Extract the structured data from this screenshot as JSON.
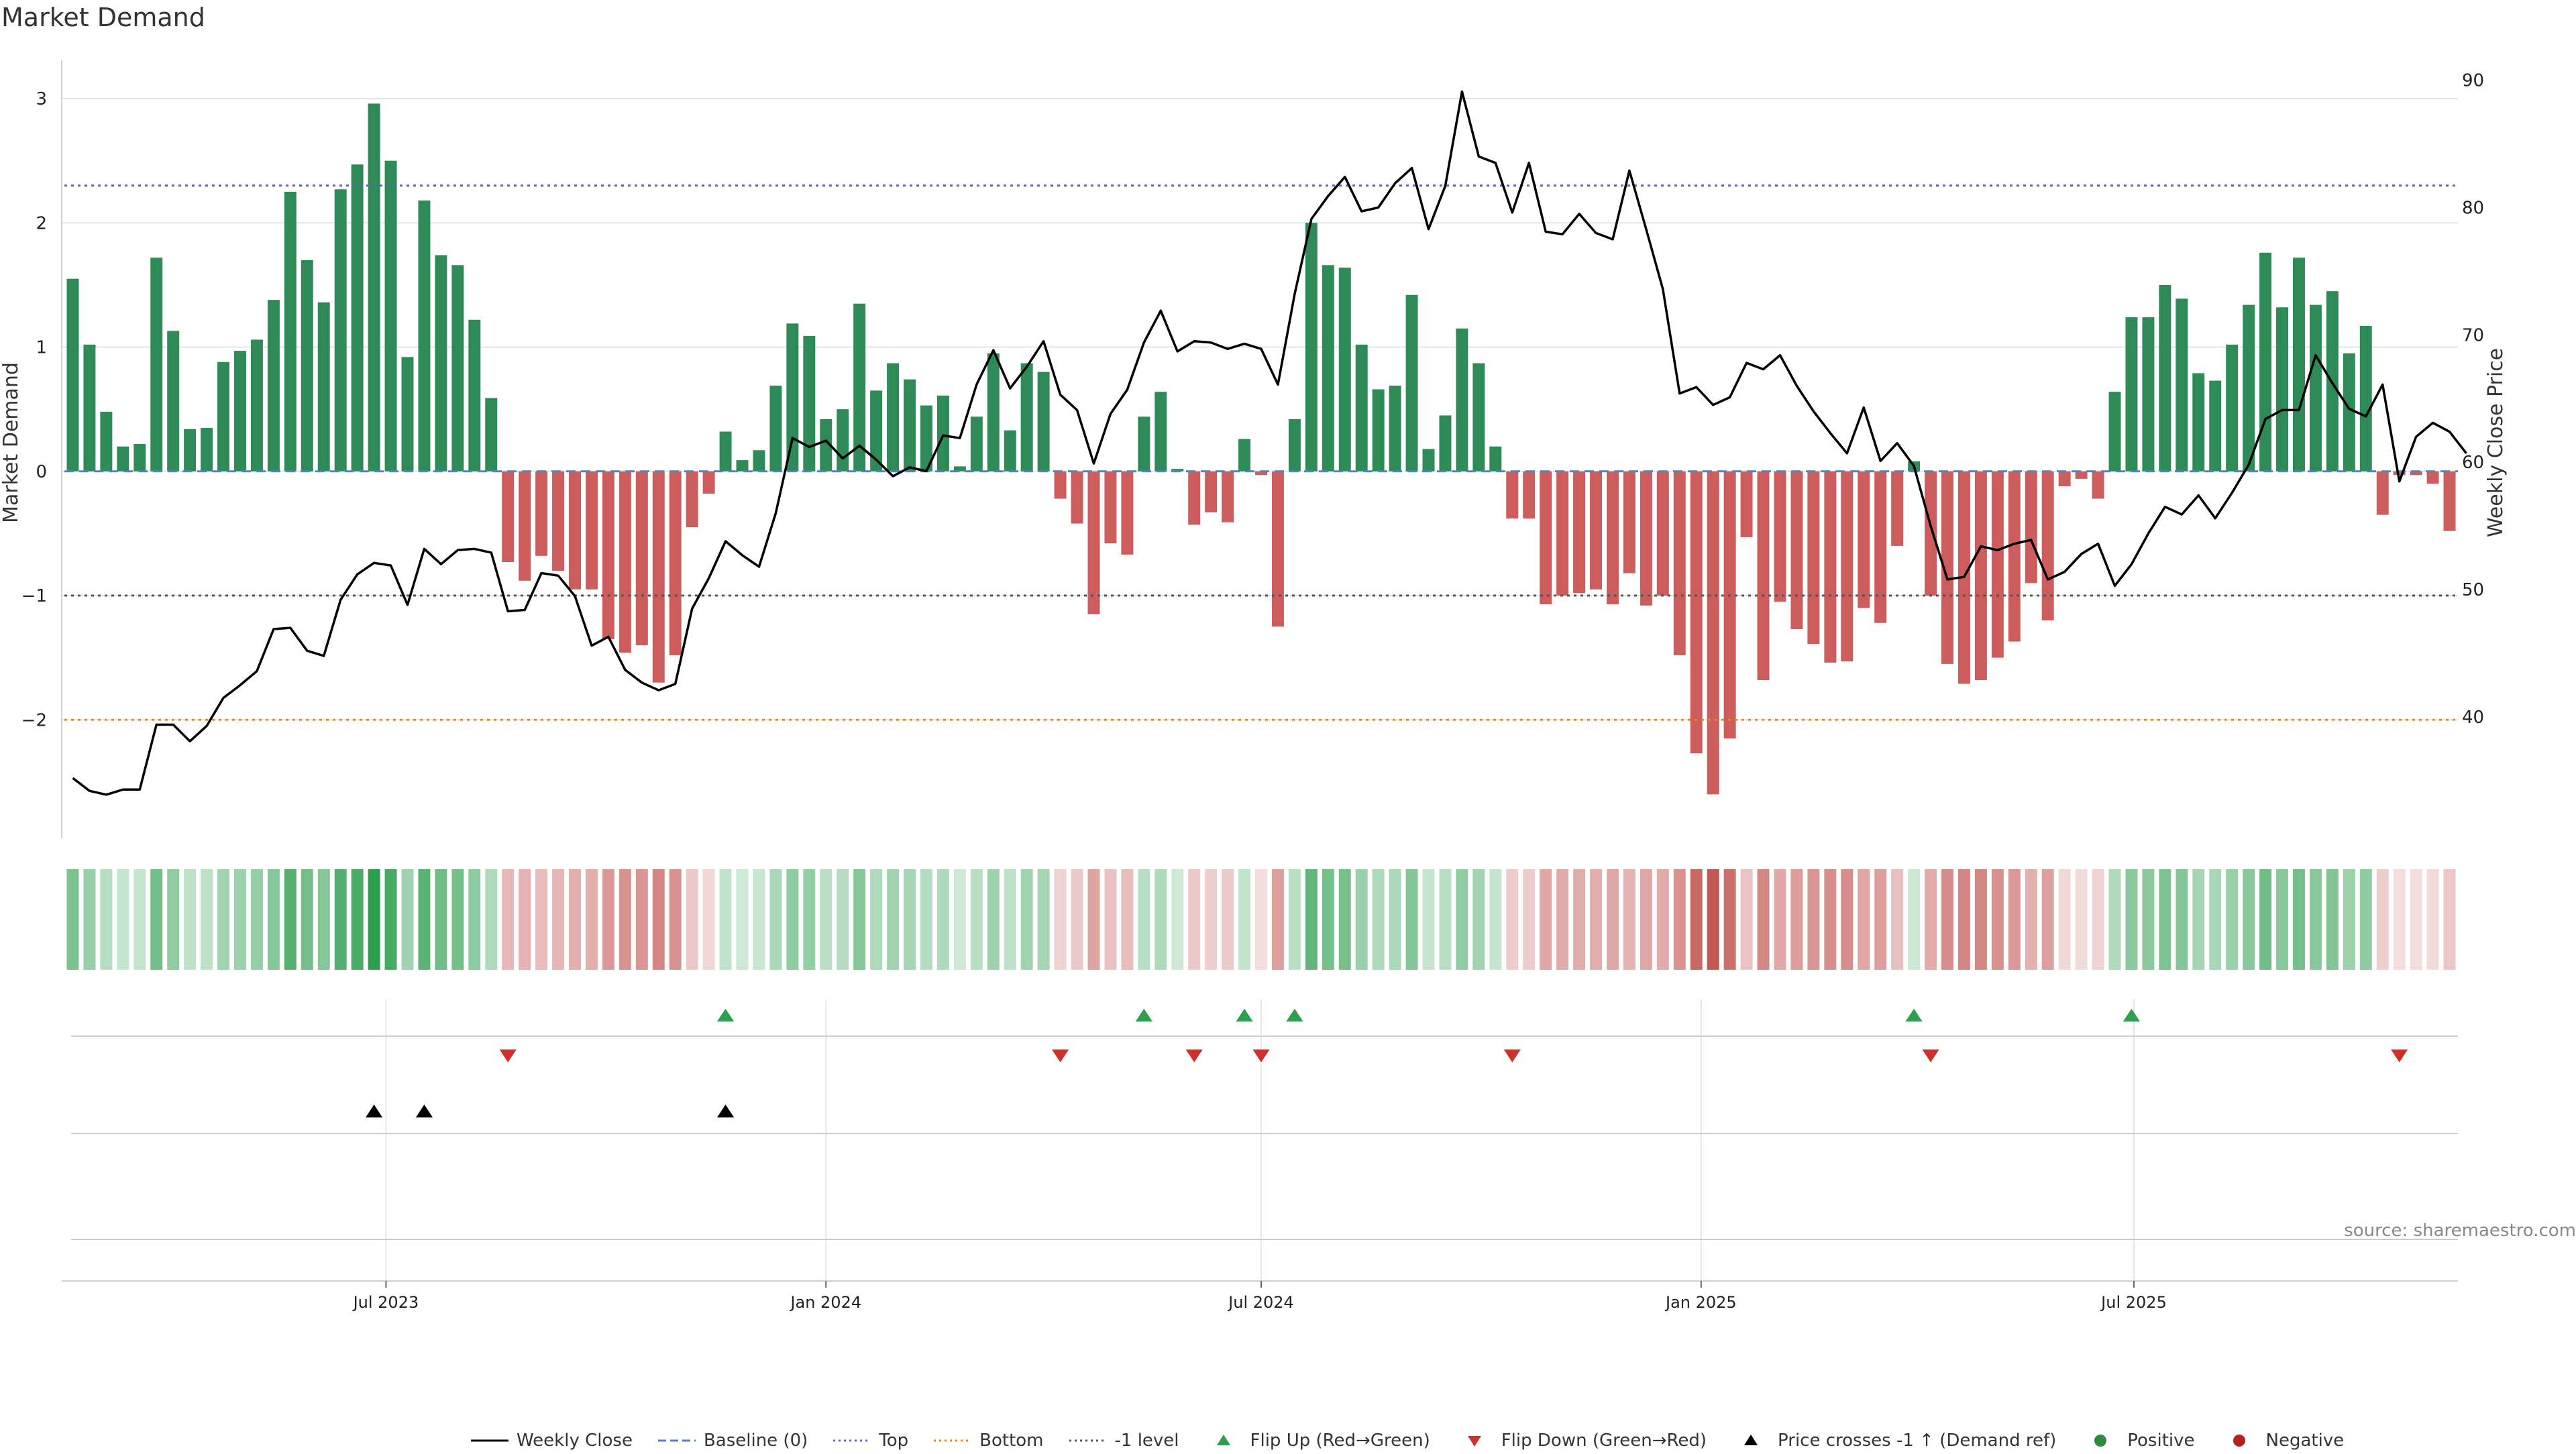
{
  "chart_title": "Market Demand",
  "source": "source: sharemaestro.com",
  "y_left_label": "Market Demand",
  "y_right_label": "Weekly Close Price",
  "legend": [
    {
      "key": "close",
      "label": "Weekly Close",
      "symbol": "line",
      "color": "#000000"
    },
    {
      "key": "baseline",
      "label": "Baseline (0)",
      "symbol": "dashed",
      "color": "#4f86c6"
    },
    {
      "key": "top",
      "label": "Top",
      "symbol": "dotted",
      "color": "#6a5acd"
    },
    {
      "key": "bottom",
      "label": "Bottom",
      "symbol": "dotted",
      "color": "#e08a2c"
    },
    {
      "key": "minus1",
      "label": "-1 level",
      "symbol": "dotted",
      "color": "#555555"
    },
    {
      "key": "flipup",
      "label": "Flip Up (Red→Green)",
      "symbol": "tri-up",
      "color": "#2e9e4f"
    },
    {
      "key": "flipdown",
      "label": "Flip Down (Green→Red)",
      "symbol": "tri-down",
      "color": "#d0302c"
    },
    {
      "key": "cross",
      "label": "Price crosses -1 ↑ (Demand ref)",
      "symbol": "tri-up",
      "color": "#000000"
    },
    {
      "key": "pos",
      "label": "Positive",
      "symbol": "dot",
      "color": "#2e8b3e"
    },
    {
      "key": "neg",
      "label": "Negative",
      "symbol": "dot",
      "color": "#b22222"
    }
  ],
  "colors": {
    "positive_bar": "#2e8b57",
    "negative_bar": "#cd5c5c",
    "heat_pos": "#2e9e4f",
    "heat_neg": "#c0504d",
    "price_line": "#000000",
    "top_line": "#6a5acd",
    "bottom_line": "#e08a2c",
    "minus1_line": "#555555",
    "baseline": "#4f86c6",
    "flip_up": "#2e9e4f",
    "flip_down": "#d0302c",
    "cross": "#000000"
  },
  "chart_data": {
    "type": "bar",
    "first_week": "2023-02-20",
    "weeks": 144,
    "y_left": {
      "label": "Market Demand",
      "ticks": [
        -2,
        -1,
        0,
        1,
        2,
        3
      ],
      "tick_labels": [
        "−2",
        "−1",
        "0",
        "1",
        "2",
        "3"
      ],
      "range": [
        -2.9,
        3.2
      ]
    },
    "y_right": {
      "label": "Weekly Close Price",
      "ticks": [
        40,
        50,
        60,
        70,
        80,
        90
      ],
      "range": [
        31,
        90.5
      ]
    },
    "x_ticks": [
      {
        "label": "Jul 2023",
        "date": "2023-07-01"
      },
      {
        "label": "Jan 2024",
        "date": "2024-01-01"
      },
      {
        "label": "Jul 2024",
        "date": "2024-07-01"
      },
      {
        "label": "Jan 2025",
        "date": "2025-01-01"
      },
      {
        "label": "Jul 2025",
        "date": "2025-07-01"
      }
    ],
    "reference_lines": {
      "top": 2.3,
      "bottom": -2.0,
      "minus1": -1.0,
      "baseline": 0
    },
    "series": [
      {
        "name": "Market Demand",
        "values": [
          1.55,
          1.02,
          0.48,
          0.2,
          0.22,
          1.72,
          1.13,
          0.34,
          0.35,
          0.88,
          0.97,
          1.06,
          1.38,
          2.25,
          1.7,
          1.36,
          2.27,
          2.47,
          2.96,
          2.5,
          0.92,
          2.18,
          1.74,
          1.66,
          1.22,
          0.59,
          -0.73,
          -0.88,
          -0.68,
          -0.8,
          -0.95,
          -0.95,
          -1.35,
          -1.46,
          -1.4,
          -1.7,
          -1.48,
          -0.45,
          -0.18,
          0.32,
          0.09,
          0.17,
          0.69,
          1.19,
          1.09,
          0.42,
          0.5,
          1.35,
          0.65,
          0.87,
          0.74,
          0.53,
          0.61,
          0.04,
          0.44,
          0.95,
          0.33,
          0.87,
          0.8,
          -0.22,
          -0.42,
          -1.15,
          -0.58,
          -0.67,
          0.44,
          0.64,
          0.02,
          -0.43,
          -0.33,
          -0.41,
          0.26,
          -0.03,
          -1.25,
          0.42,
          2.0,
          1.66,
          1.64,
          1.02,
          0.66,
          0.69,
          1.42,
          0.18,
          0.45,
          1.15,
          0.87,
          0.2,
          -0.38,
          -0.38,
          -1.07,
          -1.0,
          -0.98,
          -0.95,
          -1.07,
          -0.82,
          -1.08,
          -1.0,
          -1.48,
          -2.27,
          -2.6,
          -2.15,
          -0.53,
          -1.68,
          -1.05,
          -1.27,
          -1.39,
          -1.54,
          -1.53,
          -1.1,
          -1.22,
          -0.6,
          0.08,
          -1.0,
          -1.55,
          -1.71,
          -1.68,
          -1.5,
          -1.37,
          -0.9,
          -1.2,
          -0.12,
          -0.06,
          -0.22,
          0.64,
          1.24,
          1.24,
          1.5,
          1.39,
          0.79,
          0.73,
          1.02,
          1.34,
          1.76,
          1.32,
          1.72,
          1.34,
          1.45,
          0.95,
          1.17,
          -0.35,
          -0.03,
          -0.03,
          -0.1,
          -0.48
        ]
      },
      {
        "name": "Weekly Close",
        "values": [
          35.2,
          34.2,
          33.9,
          34.3,
          34.3,
          39.4,
          39.4,
          38.1,
          39.3,
          41.5,
          42.5,
          43.6,
          46.9,
          47.0,
          45.2,
          44.8,
          49.2,
          51.2,
          52.1,
          51.9,
          48.8,
          53.2,
          52.0,
          53.1,
          53.2,
          52.9,
          48.3,
          48.4,
          51.3,
          51.1,
          49.5,
          45.6,
          46.3,
          43.7,
          42.7,
          42.1,
          42.6,
          48.5,
          50.9,
          53.8,
          52.7,
          51.8,
          56.0,
          61.9,
          61.2,
          61.7,
          60.3,
          61.3,
          60.2,
          58.9,
          59.6,
          59.3,
          62.1,
          61.9,
          66.1,
          68.8,
          65.8,
          67.5,
          69.5,
          65.3,
          64.1,
          59.9,
          63.8,
          65.7,
          69.4,
          71.9,
          68.7,
          69.5,
          69.4,
          68.9,
          69.3,
          68.9,
          66.1,
          73.2,
          79.1,
          80.9,
          82.4,
          79.7,
          80.0,
          81.9,
          83.1,
          78.3,
          81.7,
          89.1,
          84.0,
          83.5,
          79.6,
          83.5,
          78.1,
          77.9,
          79.5,
          78.0,
          77.5,
          82.9,
          78.3,
          73.6,
          65.4,
          65.9,
          64.5,
          65.1,
          67.8,
          67.3,
          68.4,
          66.0,
          64.0,
          62.3,
          60.7,
          64.3,
          60.1,
          61.5,
          59.7,
          55.0,
          50.8,
          51.0,
          53.4,
          53.1,
          53.6,
          53.9,
          50.8,
          51.4,
          52.8,
          53.6,
          50.3,
          52.0,
          54.4,
          56.5,
          55.9,
          57.4,
          55.6,
          57.6,
          59.8,
          63.4,
          64.1,
          64.1,
          68.4,
          66.2,
          64.2,
          63.6,
          66.1,
          58.5,
          62.0,
          63.1,
          62.4,
          60.7
        ]
      }
    ],
    "heat_strip": "Market Demand color scale per week",
    "signals": {
      "flip_up_weeks": [
        39,
        64,
        70,
        73,
        110,
        123
      ],
      "flip_down_weeks": [
        26,
        59,
        67,
        71,
        86,
        111,
        139
      ],
      "price_cross_weeks": [
        18,
        21,
        39
      ]
    },
    "grid": true
  }
}
